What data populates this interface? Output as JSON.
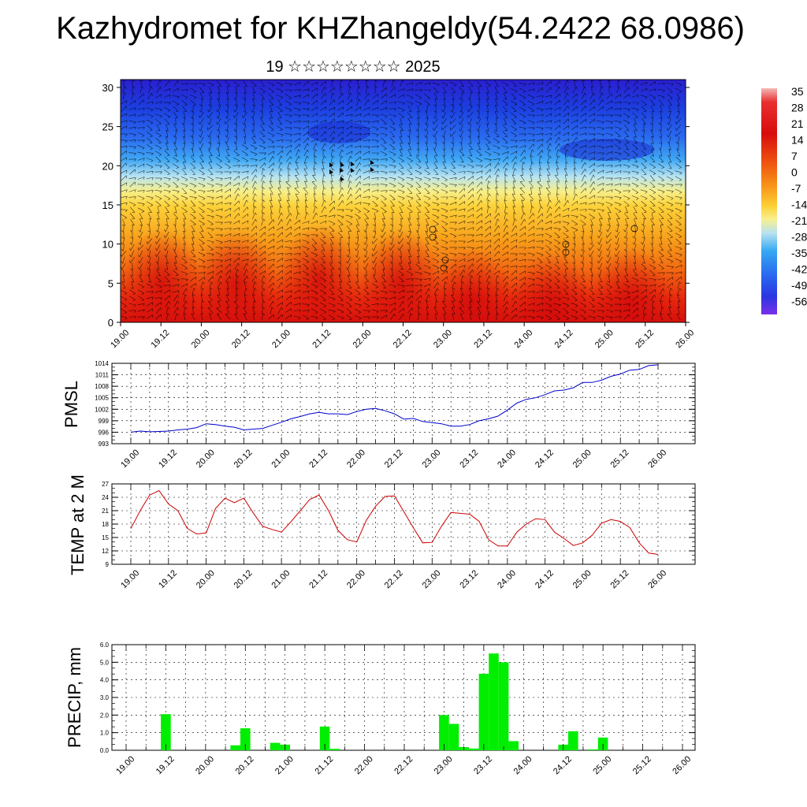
{
  "title": "Kazhydromet for KHZhangeldy(54.2422 68.0986)",
  "subtitle": "19 ☆☆☆☆☆☆☆☆ 2025",
  "time_labels": [
    "19.00",
    "19.12",
    "20.00",
    "20.12",
    "21.00",
    "21.12",
    "22.00",
    "22.12",
    "23.00",
    "23.12",
    "24.00",
    "24.12",
    "25.00",
    "25.12",
    "26.00"
  ],
  "chart_data": [
    {
      "type": "heatmap",
      "name": "cross-section",
      "y_ticks": [
        0,
        5,
        10,
        15,
        20,
        25,
        30
      ],
      "ylim": [
        0,
        31
      ],
      "colorbar_labels": [
        "35",
        "28",
        "21",
        "14",
        "7",
        "0",
        "-7",
        "-14",
        "-21",
        "-28",
        "-35",
        "-42",
        "-49",
        "-56"
      ]
    },
    {
      "type": "line",
      "ylabel": "PMSL",
      "ylim": [
        993,
        1014
      ],
      "y_ticks": [
        993,
        996,
        999,
        1002,
        1005,
        1008,
        1011,
        1014
      ],
      "color": "#0000cc",
      "x": [
        0,
        3,
        6,
        9,
        12,
        15,
        18,
        21,
        24,
        27,
        30,
        33,
        36,
        39,
        42,
        45,
        48,
        51,
        54,
        57,
        60,
        63,
        66,
        69,
        72,
        75,
        78,
        81,
        84,
        87,
        90,
        93,
        96,
        99,
        102,
        105,
        108,
        111,
        114,
        117,
        120,
        123,
        126,
        129,
        132,
        135,
        138,
        141,
        144,
        147,
        150,
        153,
        156,
        159,
        162,
        165,
        168
      ],
      "values": [
        996.0,
        996.3,
        996.1,
        996.2,
        996.3,
        996.6,
        996.8,
        997.2,
        998.2,
        998.0,
        997.6,
        997.3,
        996.6,
        996.8,
        997.0,
        997.8,
        998.6,
        999.5,
        1000.1,
        1000.8,
        1001.2,
        1000.8,
        1000.8,
        1000.6,
        1001.4,
        1002.0,
        1002.2,
        1001.6,
        1000.8,
        999.4,
        999.6,
        998.8,
        998.5,
        998.2,
        997.6,
        997.6,
        998.0,
        999.0,
        999.5,
        1000.2,
        1001.8,
        1003.6,
        1004.6,
        1005.0,
        1005.8,
        1006.8,
        1007.0,
        1007.6,
        1009.0,
        1009.0,
        1009.6,
        1010.6,
        1011.2,
        1012.2,
        1012.4,
        1013.4,
        1013.6
      ]
    },
    {
      "type": "line",
      "ylabel": "TEMP at 2 M",
      "ylim": [
        9,
        27
      ],
      "y_ticks": [
        9,
        12,
        15,
        18,
        21,
        24,
        27
      ],
      "color": "#cc0000",
      "x": [
        0,
        3,
        6,
        9,
        12,
        15,
        18,
        21,
        24,
        27,
        30,
        33,
        36,
        39,
        42,
        45,
        48,
        51,
        54,
        57,
        60,
        63,
        66,
        69,
        72,
        75,
        78,
        81,
        84,
        87,
        90,
        93,
        96,
        99,
        102,
        105,
        108,
        111,
        114,
        117,
        120,
        123,
        126,
        129,
        132,
        135,
        138,
        141,
        144,
        147,
        150,
        153,
        156,
        159,
        162,
        165,
        168
      ],
      "values": [
        17.0,
        21.0,
        24.5,
        25.5,
        22.5,
        21.0,
        17.0,
        15.8,
        16.0,
        21.5,
        23.8,
        22.8,
        23.8,
        20.5,
        17.5,
        16.8,
        16.2,
        18.5,
        21.0,
        23.5,
        24.5,
        21.0,
        16.6,
        14.5,
        14.0,
        18.8,
        22.0,
        24.2,
        24.3,
        20.8,
        17.2,
        13.8,
        13.9,
        17.5,
        20.6,
        20.4,
        20.2,
        18.6,
        14.5,
        13.1,
        13.1,
        16.2,
        18.0,
        19.2,
        19.0,
        16.2,
        14.8,
        13.2,
        13.8,
        15.5,
        18.2,
        19.0,
        18.6,
        17.2,
        13.8,
        11.5,
        11.2
      ]
    },
    {
      "type": "bar",
      "ylabel": "PRECIP, mm",
      "ylim": [
        0,
        6
      ],
      "y_ticks": [
        "0.0",
        "1.0",
        "2.0",
        "3.0",
        "4.0",
        "5.0",
        "6.0"
      ],
      "color": "#00ee00",
      "x": [
        12,
        33,
        36,
        45,
        48,
        60,
        63,
        96,
        99,
        102,
        105,
        108,
        111,
        114,
        117,
        132,
        135,
        141,
        144
      ],
      "values": [
        2.05,
        0.28,
        1.25,
        0.42,
        0.32,
        1.35,
        0.08,
        2.0,
        1.5,
        0.18,
        0.1,
        4.35,
        5.5,
        5.0,
        0.52,
        0.32,
        1.08,
        0.05,
        0.72
      ]
    }
  ]
}
